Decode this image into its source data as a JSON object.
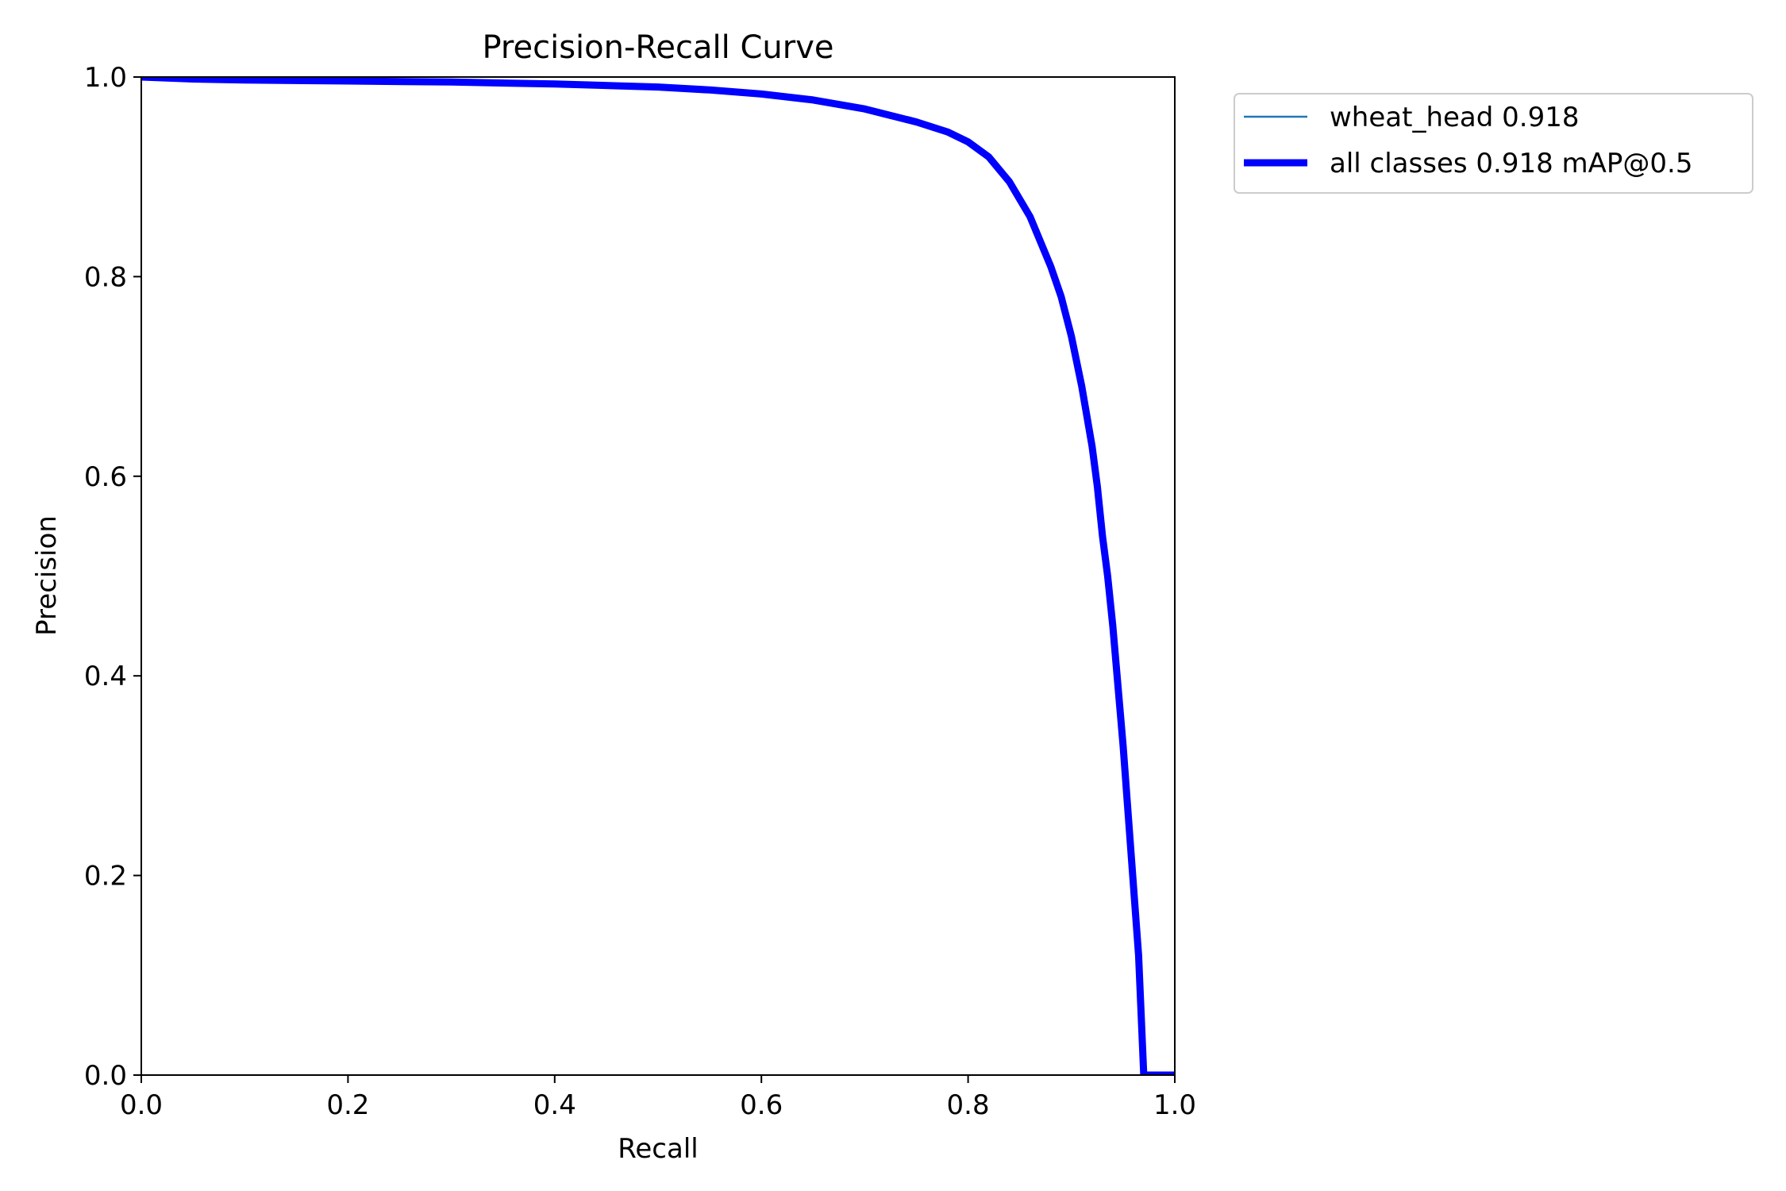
{
  "chart_data": {
    "type": "line",
    "title": "Precision-Recall Curve",
    "xlabel": "Recall",
    "ylabel": "Precision",
    "xlim": [
      0,
      1
    ],
    "ylim": [
      0,
      1
    ],
    "xticks": [
      "0.0",
      "0.2",
      "0.4",
      "0.6",
      "0.8",
      "1.0"
    ],
    "yticks": [
      "0.0",
      "0.2",
      "0.4",
      "0.6",
      "0.8",
      "1.0"
    ],
    "grid": false,
    "legend_position": "outside-top-right",
    "series": [
      {
        "name": "wheat_head 0.918",
        "color": "#1f77b4",
        "style": "thin",
        "x": [
          0.0,
          0.05,
          0.1,
          0.2,
          0.3,
          0.4,
          0.5,
          0.55,
          0.6,
          0.65,
          0.7,
          0.75,
          0.78,
          0.8,
          0.82,
          0.84,
          0.86,
          0.88,
          0.89,
          0.9,
          0.91,
          0.92,
          0.925,
          0.93,
          0.935,
          0.94,
          0.945,
          0.95,
          0.955,
          0.96,
          0.965,
          0.97,
          0.97,
          1.0
        ],
        "y": [
          1.0,
          0.998,
          0.997,
          0.996,
          0.995,
          0.993,
          0.99,
          0.987,
          0.983,
          0.977,
          0.968,
          0.955,
          0.945,
          0.935,
          0.92,
          0.895,
          0.86,
          0.81,
          0.78,
          0.74,
          0.69,
          0.63,
          0.59,
          0.54,
          0.5,
          0.45,
          0.39,
          0.33,
          0.26,
          0.19,
          0.12,
          0.0,
          0.0,
          0.0
        ]
      },
      {
        "name": "all classes 0.918 mAP@0.5",
        "color": "#0000ff",
        "style": "thick",
        "x": [
          0.0,
          0.05,
          0.1,
          0.2,
          0.3,
          0.4,
          0.5,
          0.55,
          0.6,
          0.65,
          0.7,
          0.75,
          0.78,
          0.8,
          0.82,
          0.84,
          0.86,
          0.88,
          0.89,
          0.9,
          0.91,
          0.92,
          0.925,
          0.93,
          0.935,
          0.94,
          0.945,
          0.95,
          0.955,
          0.96,
          0.965,
          0.97,
          0.97,
          1.0
        ],
        "y": [
          1.0,
          0.998,
          0.997,
          0.996,
          0.995,
          0.993,
          0.99,
          0.987,
          0.983,
          0.977,
          0.968,
          0.955,
          0.945,
          0.935,
          0.92,
          0.895,
          0.86,
          0.81,
          0.78,
          0.74,
          0.69,
          0.63,
          0.59,
          0.54,
          0.5,
          0.45,
          0.39,
          0.33,
          0.26,
          0.19,
          0.12,
          0.0,
          0.0,
          0.0
        ]
      }
    ]
  }
}
